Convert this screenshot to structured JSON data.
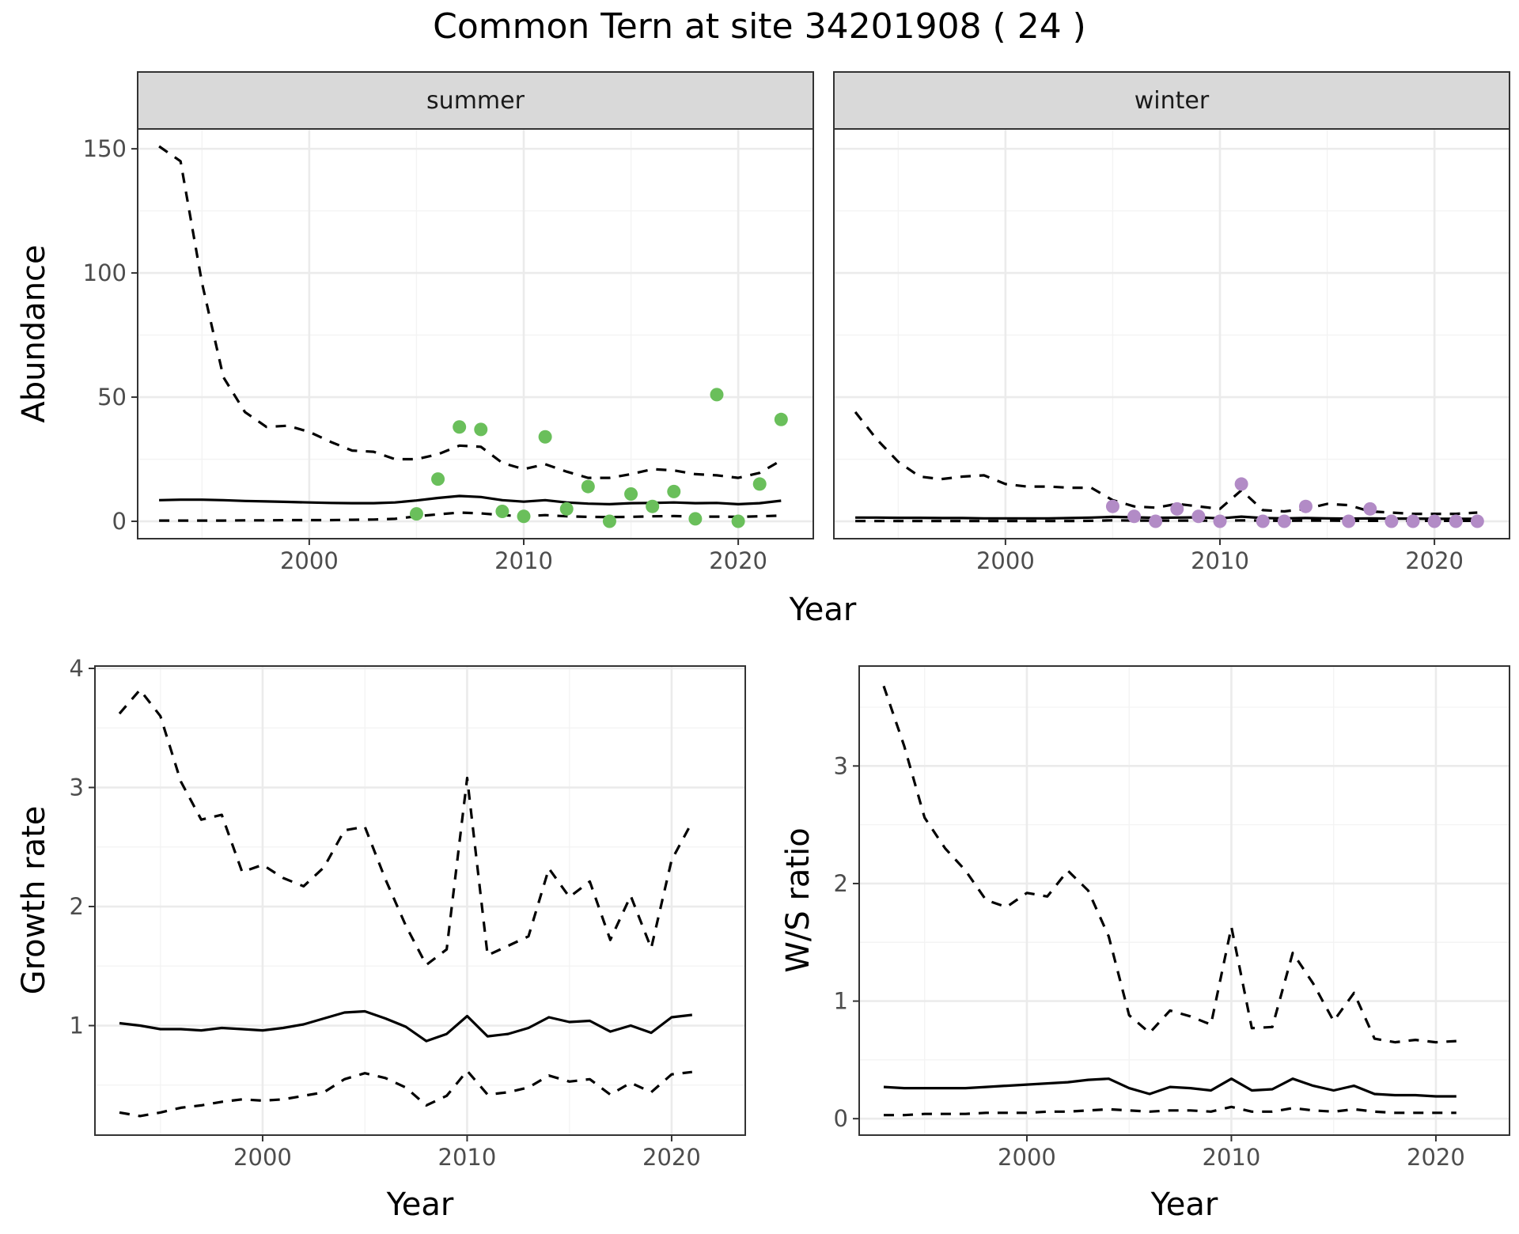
{
  "title": "Common Tern at site 34201908 ( 24 )",
  "colors": {
    "summer_points": "#6abf5b",
    "winter_points": "#b28bc6",
    "strip_bg": "#d9d9d9"
  },
  "chart_data": [
    {
      "id": "abundance",
      "type": "line",
      "facets": [
        "summer",
        "winter"
      ],
      "xlabel": "Year",
      "ylabel": "Abundance",
      "xlim": [
        1992,
        2023.5
      ],
      "ylim": [
        -7,
        158
      ],
      "xticks": [
        2000,
        2010,
        2020
      ],
      "yticks": [
        0,
        50,
        100,
        150
      ],
      "grid": true,
      "panels": [
        {
          "facet": "summer",
          "years": [
            1993,
            1994,
            1995,
            1996,
            1997,
            1998,
            1999,
            2000,
            2001,
            2002,
            2003,
            2004,
            2005,
            2006,
            2007,
            2008,
            2009,
            2010,
            2011,
            2012,
            2013,
            2014,
            2015,
            2016,
            2017,
            2018,
            2019,
            2020,
            2021,
            2022
          ],
          "estimate": [
            8.5,
            8.7,
            8.7,
            8.5,
            8.2,
            8,
            7.8,
            7.6,
            7.4,
            7.3,
            7.3,
            7.6,
            8.4,
            9.4,
            10.2,
            9.8,
            8.5,
            7.9,
            8.5,
            7.6,
            7.1,
            6.9,
            7.3,
            7.4,
            7.6,
            7.3,
            7.4,
            6.9,
            7.3,
            8.3
          ],
          "upper": [
            151,
            145,
            96,
            58,
            44,
            38,
            38.5,
            36,
            32,
            28.5,
            28,
            25,
            25,
            27,
            30.5,
            30,
            23.5,
            21,
            23,
            20,
            17.5,
            17.5,
            19,
            21,
            20.5,
            19,
            18.5,
            17.5,
            19.5,
            24.5
          ],
          "lower": [
            0.3,
            0.3,
            0.3,
            0.3,
            0.4,
            0.4,
            0.5,
            0.5,
            0.5,
            0.6,
            0.7,
            1,
            2,
            2.8,
            3.5,
            3.2,
            2.5,
            2,
            2.5,
            2,
            1.8,
            1.7,
            1.8,
            2,
            2.1,
            1.9,
            1.9,
            1.8,
            2,
            2.3
          ],
          "observed": {
            "years": [
              2005,
              2006,
              2007,
              2008,
              2009,
              2010,
              2011,
              2012,
              2013,
              2014,
              2015,
              2016,
              2017,
              2018,
              2019,
              2020,
              2021,
              2022
            ],
            "counts": [
              3,
              17,
              38,
              37,
              4,
              2,
              34,
              5,
              14,
              0,
              11,
              6,
              12,
              1,
              51,
              0,
              15,
              41
            ]
          }
        },
        {
          "facet": "winter",
          "years": [
            1993,
            1994,
            1995,
            1996,
            1997,
            1998,
            1999,
            2000,
            2001,
            2002,
            2003,
            2004,
            2005,
            2006,
            2007,
            2008,
            2009,
            2010,
            2011,
            2012,
            2013,
            2014,
            2015,
            2016,
            2017,
            2018,
            2019,
            2020,
            2021,
            2022
          ],
          "estimate": [
            1.5,
            1.5,
            1.4,
            1.4,
            1.3,
            1.3,
            1.2,
            1.2,
            1.2,
            1.2,
            1.3,
            1.5,
            1.8,
            1.6,
            1.4,
            1.5,
            1.6,
            1.2,
            1.9,
            1.3,
            1.2,
            1.3,
            1.2,
            1.1,
            1.2,
            1.1,
            1.1,
            1,
            1,
            1
          ],
          "upper": [
            44,
            33,
            24,
            18,
            17,
            18,
            18.5,
            15,
            14,
            14,
            13.5,
            13.5,
            8.5,
            6,
            5.5,
            7,
            6,
            5,
            12.5,
            4.5,
            4,
            5,
            7,
            6.5,
            4,
            3.5,
            3,
            3,
            3,
            3.5
          ],
          "lower": [
            0.1,
            0.1,
            0.1,
            0.1,
            0.1,
            0.1,
            0.1,
            0.1,
            0.1,
            0.1,
            0.1,
            0.2,
            0.4,
            0.3,
            0.3,
            0.3,
            0.3,
            0.2,
            0.4,
            0.3,
            0.2,
            0.3,
            0.3,
            0.2,
            0.2,
            0.2,
            0.2,
            0.2,
            0.2,
            0.2
          ],
          "observed": {
            "years": [
              2005,
              2006,
              2007,
              2008,
              2009,
              2010,
              2011,
              2012,
              2013,
              2014,
              2016,
              2017,
              2018,
              2019,
              2020,
              2021,
              2022
            ],
            "counts": [
              6,
              2,
              0,
              5,
              2,
              0,
              15,
              0,
              0,
              6,
              0,
              5,
              0,
              0,
              0,
              0,
              0
            ]
          }
        }
      ]
    },
    {
      "id": "growth",
      "type": "line",
      "xlabel": "Year",
      "ylabel": "Growth rate",
      "xlim": [
        1991.8,
        2023.6
      ],
      "ylim": [
        0.08,
        4.02
      ],
      "xticks": [
        2000,
        2010,
        2020
      ],
      "yticks": [
        1,
        2,
        3,
        4
      ],
      "grid": true,
      "years": [
        1993,
        1994,
        1995,
        1996,
        1997,
        1998,
        1999,
        2000,
        2001,
        2002,
        2003,
        2004,
        2005,
        2006,
        2007,
        2008,
        2009,
        2010,
        2011,
        2012,
        2013,
        2014,
        2015,
        2016,
        2017,
        2018,
        2019,
        2020,
        2021
      ],
      "estimate": [
        1.02,
        1,
        0.97,
        0.97,
        0.96,
        0.98,
        0.97,
        0.96,
        0.98,
        1.01,
        1.06,
        1.11,
        1.12,
        1.06,
        0.99,
        0.87,
        0.93,
        1.08,
        0.91,
        0.93,
        0.98,
        1.07,
        1.03,
        1.04,
        0.95,
        1,
        0.94,
        1.07,
        1.09
      ],
      "upper": [
        3.62,
        3.82,
        3.6,
        3.05,
        2.73,
        2.77,
        2.29,
        2.35,
        2.24,
        2.17,
        2.33,
        2.64,
        2.67,
        2.23,
        1.84,
        1.51,
        1.64,
        3.08,
        1.59,
        1.67,
        1.75,
        2.32,
        2.08,
        2.21,
        1.72,
        2.09,
        1.65,
        2.39,
        2.71
      ],
      "lower": [
        0.27,
        0.24,
        0.27,
        0.31,
        0.33,
        0.36,
        0.38,
        0.37,
        0.38,
        0.41,
        0.44,
        0.55,
        0.6,
        0.56,
        0.48,
        0.33,
        0.41,
        0.62,
        0.42,
        0.44,
        0.48,
        0.58,
        0.53,
        0.55,
        0.42,
        0.52,
        0.44,
        0.59,
        0.61
      ]
    },
    {
      "id": "ratio",
      "type": "line",
      "xlabel": "Year",
      "ylabel": "W/S ratio",
      "xlim": [
        1991.8,
        2023.6
      ],
      "ylim": [
        -0.14,
        3.85
      ],
      "xticks": [
        2000,
        2010,
        2020
      ],
      "yticks": [
        0,
        1,
        2,
        3
      ],
      "grid": true,
      "years": [
        1993,
        1994,
        1995,
        1996,
        1997,
        1998,
        1999,
        2000,
        2001,
        2002,
        2003,
        2004,
        2005,
        2006,
        2007,
        2008,
        2009,
        2010,
        2011,
        2012,
        2013,
        2014,
        2015,
        2016,
        2017,
        2018,
        2019,
        2020,
        2021
      ],
      "estimate": [
        0.27,
        0.26,
        0.26,
        0.26,
        0.26,
        0.27,
        0.28,
        0.29,
        0.3,
        0.31,
        0.33,
        0.34,
        0.26,
        0.21,
        0.27,
        0.26,
        0.24,
        0.34,
        0.24,
        0.25,
        0.34,
        0.28,
        0.24,
        0.28,
        0.21,
        0.2,
        0.2,
        0.19,
        0.19
      ],
      "upper": [
        3.68,
        3.17,
        2.56,
        2.3,
        2.11,
        1.86,
        1.8,
        1.92,
        1.89,
        2.11,
        1.94,
        1.55,
        0.88,
        0.73,
        0.92,
        0.87,
        0.8,
        1.63,
        0.77,
        0.78,
        1.41,
        1.15,
        0.83,
        1.07,
        0.68,
        0.65,
        0.67,
        0.65,
        0.66
      ],
      "lower": [
        0.03,
        0.03,
        0.04,
        0.04,
        0.04,
        0.05,
        0.05,
        0.05,
        0.06,
        0.06,
        0.07,
        0.08,
        0.07,
        0.06,
        0.07,
        0.07,
        0.06,
        0.1,
        0.06,
        0.06,
        0.09,
        0.07,
        0.06,
        0.08,
        0.06,
        0.05,
        0.05,
        0.05,
        0.05
      ]
    }
  ]
}
